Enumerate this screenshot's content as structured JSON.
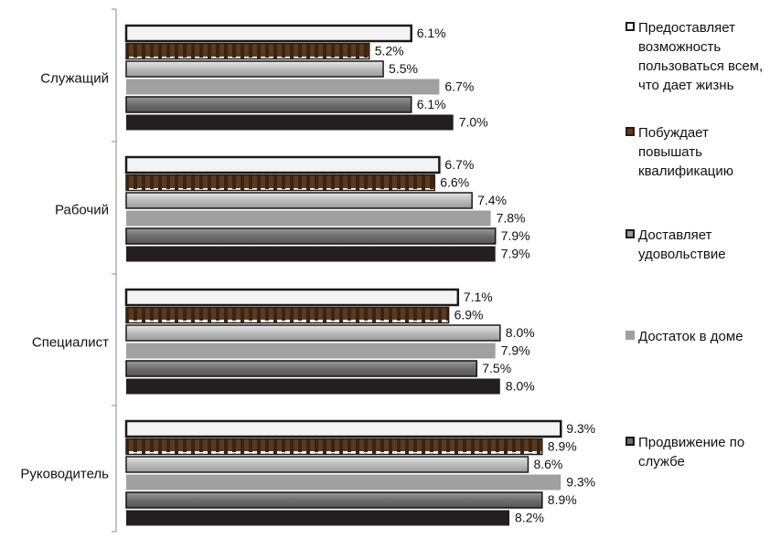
{
  "chart_data": {
    "type": "bar",
    "orientation": "horizontal",
    "categories": [
      "Служащий",
      "Рабочий",
      "Специалист",
      "Руководитель"
    ],
    "series": [
      {
        "name": "Предоставляет возможность пользоваться всем, что дает жизнь",
        "values": [
          6.1,
          6.7,
          7.1,
          9.3
        ],
        "labels": [
          "6.1%",
          "6.7%",
          "7.1%",
          "9.3%"
        ],
        "fill": "#f4f4f4",
        "stroke": "#1a1a1a",
        "pattern": "none"
      },
      {
        "name": "Побуждает повышать квалификацию",
        "values": [
          5.2,
          6.6,
          6.9,
          8.9
        ],
        "labels": [
          "5.2%",
          "6.6%",
          "6.9%",
          "8.9%"
        ],
        "fill": "#5a3a22",
        "stroke": "#2b1a0f",
        "pattern": "dashed-brown"
      },
      {
        "name": "Доставляет удовольствие",
        "values": [
          5.5,
          7.4,
          8.0,
          8.6
        ],
        "labels": [
          "5.5%",
          "7.4%",
          "8.0%",
          "8.6%"
        ],
        "fill": "#b5b5b5",
        "stroke": "#1a1a1a",
        "pattern": "gradient-light"
      },
      {
        "name": "Достаток в доме",
        "values": [
          6.7,
          7.8,
          7.9,
          9.3
        ],
        "labels": [
          "6.7%",
          "7.8%",
          "7.9%",
          "9.3%"
        ],
        "fill": "#a0a0a0",
        "stroke": "none",
        "pattern": "none"
      },
      {
        "name": "Продвижение по службе",
        "values": [
          6.1,
          7.9,
          7.5,
          8.9
        ],
        "labels": [
          "6.1%",
          "7.9%",
          "7.5%",
          "8.9%"
        ],
        "fill": "#7a7a7a",
        "stroke": "#111111",
        "pattern": "gradient-dark"
      },
      {
        "name": "",
        "values": [
          7.0,
          7.9,
          8.0,
          8.2
        ],
        "labels": [
          "7.0%",
          "7.9%",
          "8.0%",
          "8.2%"
        ],
        "fill": "#231f20",
        "stroke": "none",
        "pattern": "none"
      }
    ],
    "xlim": [
      0,
      10
    ],
    "grid": false,
    "legend_position": "right"
  },
  "legend": [
    {
      "label": "Предоставляет возможность пользоваться всем, что дает жизнь",
      "swatch": "#f4f4f4",
      "border": "#1a1a1a"
    },
    {
      "label": "Побуждает повышать квалификацию",
      "swatch": "#5a3a22",
      "border": "#2b1a0f"
    },
    {
      "label": "Доставляет удовольствие",
      "swatch": "#9a9a9a",
      "border": "#1a1a1a"
    },
    {
      "label": "Достаток в доме",
      "swatch": "#a0a0a0",
      "border": "#a0a0a0"
    },
    {
      "label": "Продвижение по службе",
      "swatch": "#6e6e6e",
      "border": "#111111"
    }
  ]
}
